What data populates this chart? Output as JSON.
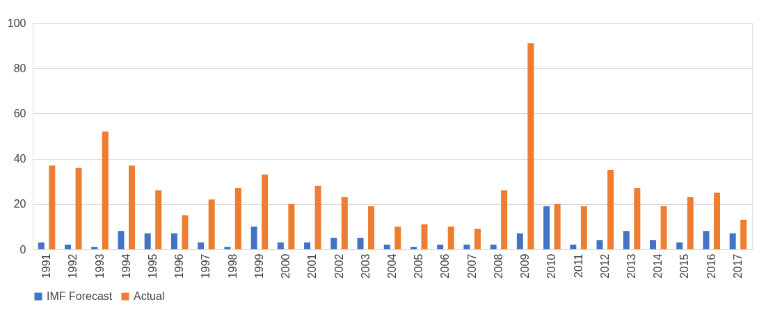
{
  "chart_data": {
    "type": "bar",
    "categories": [
      "1991",
      "1992",
      "1993",
      "1994",
      "1995",
      "1996",
      "1997",
      "1998",
      "1999",
      "2000",
      "2001",
      "2002",
      "2003",
      "2004",
      "2005",
      "2006",
      "2007",
      "2008",
      "2009",
      "2010",
      "2011",
      "2012",
      "2013",
      "2014",
      "2015",
      "2016",
      "2017"
    ],
    "series": [
      {
        "name": "IMF Forecast",
        "color": "#4472c4",
        "values": [
          3,
          2,
          1,
          8,
          7,
          7,
          3,
          1,
          10,
          3,
          3,
          5,
          5,
          2,
          1,
          2,
          2,
          2,
          7,
          19,
          2,
          4,
          8,
          4,
          3,
          8,
          7
        ]
      },
      {
        "name": "Actual",
        "color": "#ed7d31",
        "values": [
          37,
          36,
          52,
          37,
          26,
          15,
          22,
          27,
          33,
          20,
          28,
          23,
          19,
          10,
          11,
          10,
          9,
          26,
          91,
          20,
          19,
          35,
          27,
          19,
          23,
          25,
          13
        ]
      }
    ],
    "ylim": [
      0,
      100
    ],
    "yticks": [
      0,
      20,
      40,
      60,
      80,
      100
    ],
    "grid": "y",
    "legend": "bottom"
  }
}
